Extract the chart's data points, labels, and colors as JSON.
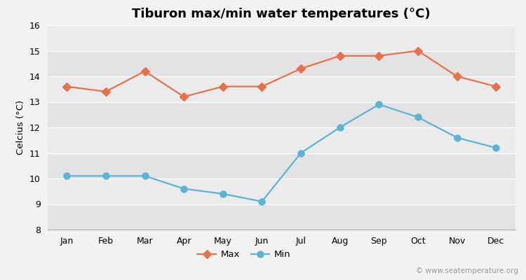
{
  "title": "Tiburon max/min water temperatures (°C)",
  "ylabel": "Celcius (°C)",
  "months": [
    "Jan",
    "Feb",
    "Mar",
    "Apr",
    "May",
    "Jun",
    "Jul",
    "Aug",
    "Sep",
    "Oct",
    "Nov",
    "Dec"
  ],
  "max_temps": [
    13.6,
    13.4,
    14.2,
    13.2,
    13.6,
    13.6,
    14.3,
    14.8,
    14.8,
    15.0,
    14.0,
    13.6
  ],
  "min_temps": [
    10.1,
    10.1,
    10.1,
    9.6,
    9.4,
    9.1,
    11.0,
    12.0,
    12.9,
    12.4,
    11.6,
    11.2
  ],
  "max_color": "#e8714a",
  "min_color": "#5ab4d6",
  "bg_color": "#f2f2f2",
  "plot_bg_color_dark": "#e3e3e3",
  "plot_bg_color_light": "#ebebeb",
  "grid_color": "#ffffff",
  "ylim": [
    8,
    16
  ],
  "yticks": [
    8,
    9,
    10,
    11,
    12,
    13,
    14,
    15,
    16
  ],
  "watermark": "© www.seatemperature.org",
  "title_fontsize": 13,
  "label_fontsize": 9.5,
  "tick_fontsize": 9,
  "watermark_fontsize": 7.5
}
